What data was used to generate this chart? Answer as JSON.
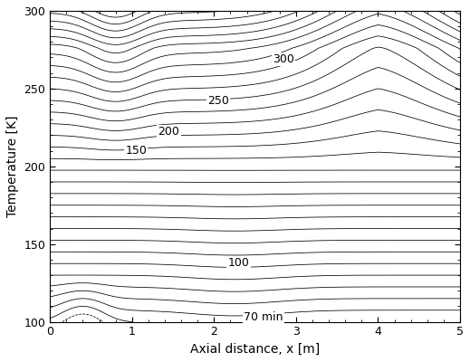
{
  "x_range": [
    0,
    5
  ],
  "y_range": [
    100,
    300
  ],
  "xlabel": "Axial distance, x [m]",
  "ylabel": "Temperature [K]",
  "x_ticks": [
    0,
    1,
    2,
    3,
    4,
    5
  ],
  "y_ticks": [
    100,
    150,
    200,
    250,
    300
  ],
  "label_fontsize": 9,
  "axis_fontsize": 10,
  "tick_fontsize": 9,
  "figsize": [
    5.19,
    4.0
  ],
  "dpi": 100,
  "n_contours": 38
}
